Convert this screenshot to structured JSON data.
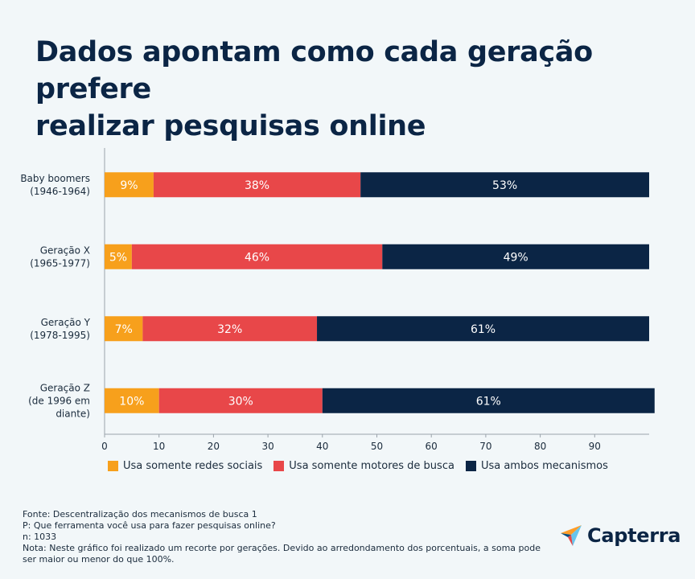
{
  "title_lines": [
    "Dados apontam como cada geração prefere",
    "realizar pesquisas online"
  ],
  "chart_data": {
    "type": "bar",
    "orientation": "horizontal",
    "stacked": true,
    "categories": [
      [
        "Baby boomers",
        "(1946-1964)"
      ],
      [
        "Geração X",
        "(1965-1977)"
      ],
      [
        "Geração Y",
        "(1978-1995)"
      ],
      [
        "Geração Z",
        "(de 1996 em",
        "diante)"
      ]
    ],
    "series": [
      {
        "name": "Usa somente redes sociais",
        "values": [
          9,
          5,
          7,
          10
        ],
        "labels": [
          "9%",
          "5%",
          "7%",
          "10%"
        ],
        "color": "#f7a01c"
      },
      {
        "name": "Usa somente motores de busca",
        "values": [
          38,
          46,
          32,
          30
        ],
        "labels": [
          "38%",
          "46%",
          "32%",
          "30%"
        ],
        "color": "#e84749"
      },
      {
        "name": "Usa ambos mecanismos",
        "values": [
          53,
          49,
          61,
          61
        ],
        "labels": [
          "53%",
          "49%",
          "61%",
          "61%"
        ],
        "color": "#0b2545"
      }
    ],
    "xlim": [
      0,
      100
    ],
    "xticks": [
      "0",
      "10",
      "20",
      "30",
      "40",
      "50",
      "60",
      "70",
      "80",
      "90"
    ],
    "legend_position": "bottom"
  },
  "footer": {
    "source": "Fonte: Descentralização dos mecanismos de busca 1",
    "question": "P: Que ferramenta você usa para fazer pesquisas online?",
    "n": "n: 1033",
    "note": "Nota: Neste gráfico foi realizado um recorte por gerações. Devido ao arredondamento dos porcentuais, a soma pode ser maior ou menor do que 100%."
  },
  "logo": {
    "text": "Capterra",
    "icon": "capterra-arrow-icon"
  }
}
